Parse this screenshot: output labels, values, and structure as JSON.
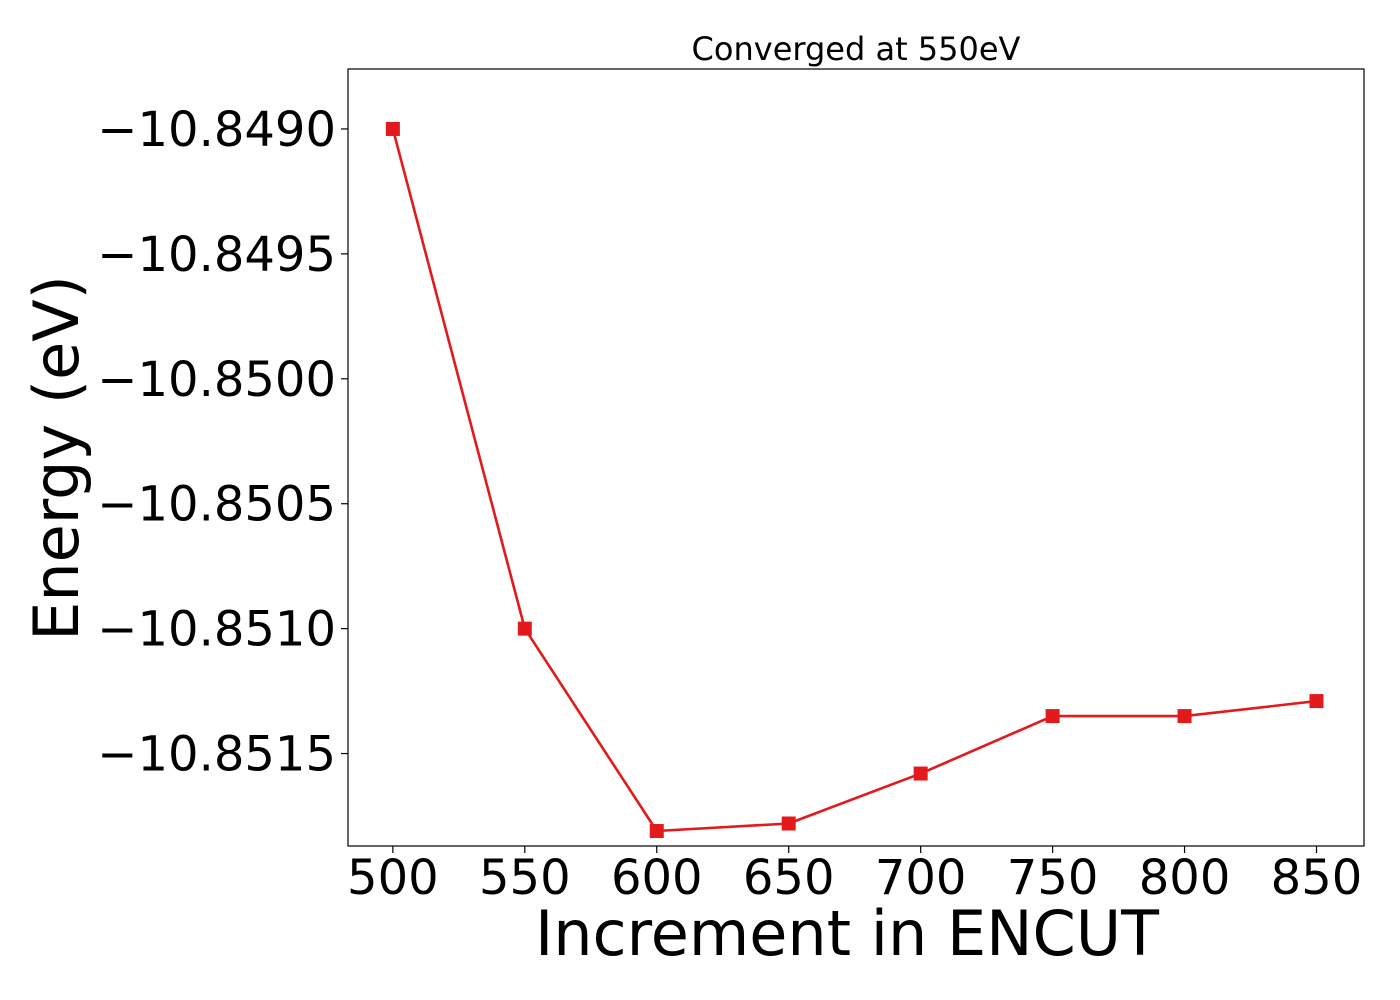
{
  "chart_data": {
    "type": "line",
    "title": "Converged at 550eV",
    "xlabel": "Increment in ENCUT",
    "ylabel": "Energy (eV)",
    "x": [
      500,
      550,
      600,
      650,
      700,
      750,
      800,
      850
    ],
    "x_ticks": [
      "500",
      "550",
      "600",
      "650",
      "700",
      "750",
      "800",
      "850"
    ],
    "y_ticks": [
      "−10.8490",
      "−10.8495",
      "−10.8500",
      "−10.8505",
      "−10.8510",
      "−10.8515"
    ],
    "xlim": [
      483,
      868
    ],
    "ylim": [
      -10.85187,
      -10.84876
    ],
    "series": [
      {
        "values": [
          -10.849,
          -10.851,
          -10.85181,
          -10.85178,
          -10.85158,
          -10.85135,
          -10.85135,
          -10.85129
        ],
        "color": "#e31a1c",
        "marker": "square"
      }
    ],
    "grid": false,
    "legend": "none"
  }
}
